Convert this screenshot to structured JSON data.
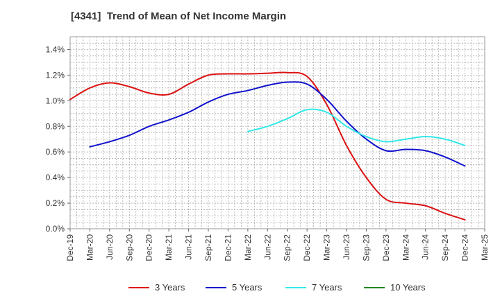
{
  "chart_data": {
    "type": "line",
    "title": "[4341]  Trend of Mean of Net Income Margin",
    "xlabel": "",
    "ylabel": "",
    "x_tick_labels": [
      "Dec-19",
      "Mar-20",
      "Jun-20",
      "Sep-20",
      "Dec-20",
      "Mar-21",
      "Jun-21",
      "Sep-21",
      "Dec-21",
      "Mar-22",
      "Jun-22",
      "Sep-22",
      "Dec-22",
      "Mar-23",
      "Jun-23",
      "Sep-23",
      "Dec-23",
      "Mar-24",
      "Jun-24",
      "Sep-24",
      "Dec-24",
      "Mar-25"
    ],
    "y_ticks": [
      0.0,
      0.2,
      0.4,
      0.6,
      0.8,
      1.0,
      1.2,
      1.4
    ],
    "y_tick_labels": [
      "0.0%",
      "0.2%",
      "0.4%",
      "0.6%",
      "0.8%",
      "1.0%",
      "1.2%",
      "1.4%"
    ],
    "ylim": [
      0.0,
      1.5
    ],
    "grid": true,
    "legend_position": "bottom",
    "series": [
      {
        "name": "3 Years",
        "color": "#dd1111",
        "points": [
          [
            "Dec-19",
            1.01
          ],
          [
            "Mar-20",
            1.1
          ],
          [
            "Jun-20",
            1.14
          ],
          [
            "Sep-20",
            1.11
          ],
          [
            "Dec-20",
            1.06
          ],
          [
            "Mar-21",
            1.05
          ],
          [
            "Jun-21",
            1.13
          ],
          [
            "Sep-21",
            1.2
          ],
          [
            "Dec-21",
            1.21
          ],
          [
            "Mar-22",
            1.21
          ],
          [
            "Jun-22",
            1.215
          ],
          [
            "Sep-22",
            1.22
          ],
          [
            "Dec-22",
            1.19
          ],
          [
            "Mar-23",
            0.97
          ],
          [
            "Jun-23",
            0.65
          ],
          [
            "Sep-23",
            0.4
          ],
          [
            "Dec-23",
            0.23
          ],
          [
            "Mar-24",
            0.2
          ],
          [
            "Jun-24",
            0.18
          ],
          [
            "Sep-24",
            0.12
          ],
          [
            "Dec-24",
            0.07
          ]
        ]
      },
      {
        "name": "5 Years",
        "color": "#1111cc",
        "points": [
          [
            "Mar-20",
            0.64
          ],
          [
            "Jun-20",
            0.68
          ],
          [
            "Sep-20",
            0.73
          ],
          [
            "Dec-20",
            0.8
          ],
          [
            "Mar-21",
            0.85
          ],
          [
            "Jun-21",
            0.91
          ],
          [
            "Sep-21",
            0.99
          ],
          [
            "Dec-21",
            1.05
          ],
          [
            "Mar-22",
            1.08
          ],
          [
            "Jun-22",
            1.12
          ],
          [
            "Sep-22",
            1.145
          ],
          [
            "Dec-22",
            1.13
          ],
          [
            "Mar-23",
            1.01
          ],
          [
            "Jun-23",
            0.84
          ],
          [
            "Sep-23",
            0.7
          ],
          [
            "Dec-23",
            0.61
          ],
          [
            "Mar-24",
            0.62
          ],
          [
            "Jun-24",
            0.61
          ],
          [
            "Sep-24",
            0.56
          ],
          [
            "Dec-24",
            0.49
          ]
        ]
      },
      {
        "name": "7 Years",
        "color": "#33e8e8",
        "points": [
          [
            "Mar-22",
            0.76
          ],
          [
            "Jun-22",
            0.8
          ],
          [
            "Sep-22",
            0.86
          ],
          [
            "Dec-22",
            0.93
          ],
          [
            "Mar-23",
            0.91
          ],
          [
            "Jun-23",
            0.8
          ],
          [
            "Sep-23",
            0.72
          ],
          [
            "Dec-23",
            0.68
          ],
          [
            "Mar-24",
            0.7
          ],
          [
            "Jun-24",
            0.72
          ],
          [
            "Sep-24",
            0.7
          ],
          [
            "Dec-24",
            0.65
          ]
        ]
      },
      {
        "name": "10 Years",
        "color": "#228822",
        "points": []
      }
    ]
  }
}
